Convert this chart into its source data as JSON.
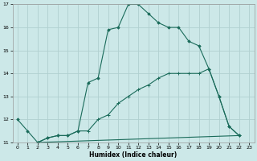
{
  "xlabel": "Humidex (Indice chaleur)",
  "bg_color": "#cce8e8",
  "grid_color": "#b0d0d0",
  "line_color": "#1a6b5a",
  "xlim": [
    -0.5,
    23.5
  ],
  "ylim": [
    11,
    17
  ],
  "yticks": [
    11,
    12,
    13,
    14,
    15,
    16,
    17
  ],
  "xticks": [
    0,
    1,
    2,
    3,
    4,
    5,
    6,
    7,
    8,
    9,
    10,
    11,
    12,
    13,
    14,
    15,
    16,
    17,
    18,
    19,
    20,
    21,
    22,
    23
  ],
  "series1_x": [
    0,
    1,
    2,
    3,
    4,
    5,
    6,
    7,
    8,
    9,
    10,
    11,
    12,
    13,
    14,
    15,
    16,
    17,
    18,
    19,
    20,
    21,
    22
  ],
  "series1_y": [
    12.0,
    11.5,
    11.0,
    11.2,
    11.3,
    11.3,
    11.5,
    13.6,
    13.8,
    15.9,
    16.0,
    17.0,
    17.0,
    16.6,
    16.2,
    16.0,
    16.0,
    15.4,
    15.2,
    14.2,
    13.0,
    11.7,
    11.3
  ],
  "series2_x": [
    2,
    3,
    4,
    5,
    6,
    7,
    8,
    9,
    10,
    11,
    12,
    13,
    14,
    15,
    16,
    17,
    18,
    19,
    20,
    21,
    22
  ],
  "series2_y": [
    11.0,
    11.2,
    11.3,
    11.3,
    11.5,
    11.5,
    12.0,
    12.2,
    12.7,
    13.0,
    13.3,
    13.5,
    13.8,
    14.0,
    14.0,
    14.0,
    14.0,
    14.2,
    13.0,
    11.7,
    11.3
  ],
  "series3_x": [
    2,
    22
  ],
  "series3_y": [
    11.0,
    11.3
  ]
}
